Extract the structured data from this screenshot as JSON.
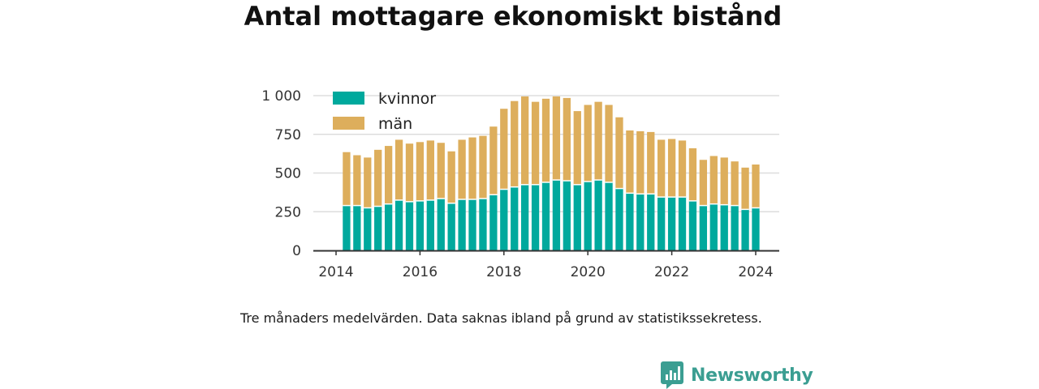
{
  "title": "Antal mottagare ekonomiskt bistånd",
  "note": "Tre månaders medelvärden. Data saknas ibland på grund av statistikssekretess.",
  "brand": {
    "name": "Newsworthy",
    "color": "#3b9e92",
    "icon": "newsworthy-logo-icon"
  },
  "colors": {
    "kvinnor": "#00a99d",
    "man": "#ddae5c",
    "axis": "#333333",
    "grid": "#dddddd"
  },
  "chart_data": {
    "type": "bar",
    "stacked": true,
    "title": "",
    "xlabel": "",
    "ylabel": "",
    "ylim": [
      0,
      1000
    ],
    "yticks": [
      0,
      250,
      500,
      750,
      1000
    ],
    "ytick_labels": [
      "0",
      "250",
      "500",
      "750",
      "1 000"
    ],
    "xticks": [
      2014,
      2016,
      2018,
      2020,
      2022,
      2024
    ],
    "grid": true,
    "legend_position": "top-left",
    "x": [
      "2014-04",
      "2014-07",
      "2014-10",
      "2015-01",
      "2015-04",
      "2015-07",
      "2015-10",
      "2016-01",
      "2016-04",
      "2016-07",
      "2016-10",
      "2017-01",
      "2017-04",
      "2017-07",
      "2017-10",
      "2018-01",
      "2018-04",
      "2018-07",
      "2018-10",
      "2019-01",
      "2019-04",
      "2019-07",
      "2019-10",
      "2020-01",
      "2020-04",
      "2020-07",
      "2020-10",
      "2021-01",
      "2021-04",
      "2021-07",
      "2021-10",
      "2022-01",
      "2022-04",
      "2022-07",
      "2022-10",
      "2023-01",
      "2023-04",
      "2023-07",
      "2023-10",
      "2024-01"
    ],
    "series": [
      {
        "name": "kvinnor",
        "values": [
          290,
          290,
          275,
          285,
          300,
          325,
          315,
          320,
          325,
          335,
          305,
          330,
          330,
          335,
          360,
          395,
          410,
          425,
          425,
          440,
          455,
          450,
          425,
          445,
          455,
          440,
          400,
          370,
          365,
          365,
          345,
          345,
          345,
          320,
          290,
          300,
          295,
          290,
          265,
          275
        ]
      },
      {
        "name": "män",
        "values": [
          345,
          325,
          325,
          365,
          375,
          390,
          375,
          380,
          385,
          360,
          335,
          385,
          400,
          405,
          440,
          520,
          555,
          570,
          535,
          540,
          540,
          535,
          475,
          495,
          505,
          500,
          460,
          405,
          405,
          400,
          370,
          375,
          365,
          340,
          295,
          310,
          305,
          285,
          270,
          280
        ]
      }
    ]
  }
}
